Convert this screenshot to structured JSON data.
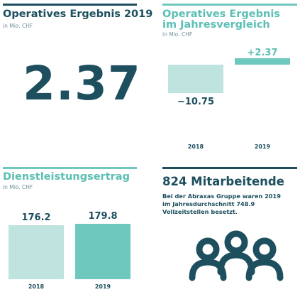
{
  "panel1": {
    "title": "Operatives Ergebnis 2019",
    "unit": "in Mio. CHF",
    "value": "2.37"
  },
  "panel2": {
    "title_line1": "Operatives Ergebnis",
    "title_line2": "im Jahresvergleich",
    "unit": "in Mio. CHF"
  },
  "panel3": {
    "title": "Dienstleistungsertrag",
    "unit": "in Mio. CHF"
  },
  "panel4": {
    "title": "824 Mitarbeitende",
    "text": "Bei der Abraxas Gruppe waren 2019 im Jahresdurchschnitt 748.9 Vollzeitstellen besetzt.",
    "icon": "people-group-icon"
  },
  "colors": {
    "dark": "#1d4f5e",
    "teal": "#6ec8bd",
    "light_teal": "#bfe3de",
    "teal_text": "#5bbfb3"
  },
  "chart_data": [
    {
      "type": "bar",
      "title": "Operatives Ergebnis im Jahresvergleich",
      "unit": "in Mio. CHF",
      "categories": [
        "2018",
        "2019"
      ],
      "values": [
        -10.75,
        2.37
      ],
      "value_labels": [
        "−10.75",
        "+2.37"
      ]
    },
    {
      "type": "bar",
      "title": "Dienstleistungsertrag",
      "unit": "in Mio. CHF",
      "categories": [
        "2018",
        "2019"
      ],
      "values": [
        176.2,
        179.8
      ],
      "value_labels": [
        "176.2",
        "179.8"
      ]
    }
  ]
}
